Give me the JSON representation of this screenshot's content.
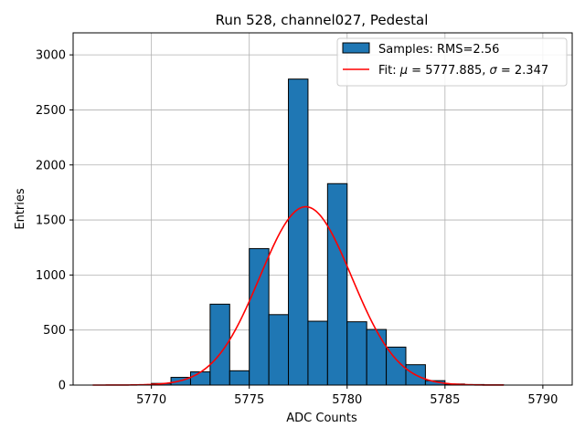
{
  "chart_data": {
    "type": "bar",
    "title": "Run 528, channel027, Pedestal",
    "xlabel": "ADC Counts",
    "ylabel": "Entries",
    "xlim": [
      5766.0,
      5791.5
    ],
    "ylim": [
      0,
      3200
    ],
    "xticks": [
      5770,
      5775,
      5780,
      5785,
      5790
    ],
    "yticks": [
      0,
      500,
      1000,
      1500,
      2000,
      2500,
      3000
    ],
    "grid": true,
    "legend_position": "top-right",
    "histogram": {
      "name": "Samples: RMS=2.56",
      "color": "#1f77b4",
      "edges": [
        5770,
        5771,
        5772,
        5773,
        5774,
        5775,
        5776,
        5777,
        5778,
        5779,
        5780,
        5781,
        5782,
        5783,
        5784,
        5785,
        5786,
        5787,
        5788
      ],
      "counts": [
        15,
        70,
        120,
        735,
        130,
        1240,
        640,
        2780,
        580,
        1830,
        575,
        505,
        345,
        185,
        40,
        10,
        5,
        2
      ]
    },
    "fit": {
      "name": "Fit: μ = 5777.885, σ = 2.347",
      "label_prefix": "Fit: ",
      "mu_symbol": "μ",
      "mu_text": " = 5777.885, ",
      "sigma_symbol": "σ",
      "sigma_text": " = 2.347",
      "color": "#ff0000",
      "mu": 5777.885,
      "sigma": 2.347,
      "amplitude": 1620,
      "x_range": [
        5767,
        5788
      ]
    }
  }
}
